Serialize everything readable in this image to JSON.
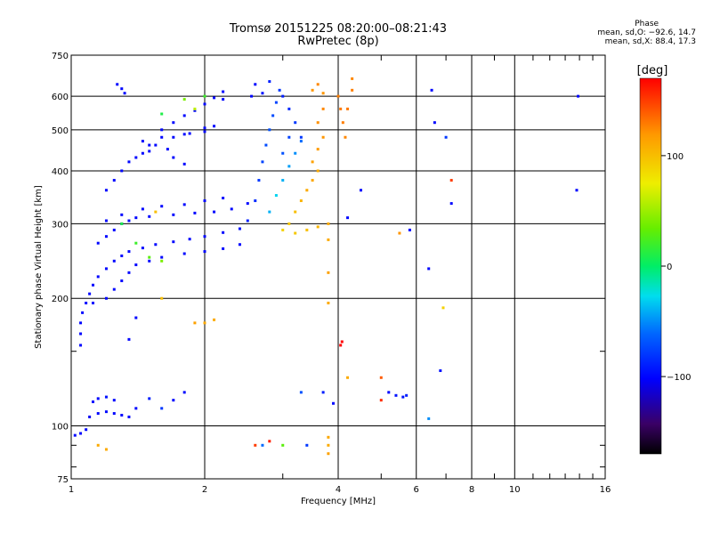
{
  "title_line1": "Tromsø 20151225 08:20:00–08:21:43",
  "title_line2": "RwPretec (8p)",
  "phase_stats": {
    "header": "Phase",
    "o_line": "mean, sd,O: −92.6, 14.7",
    "x_line": "mean, sd,X:  88.4, 17.3"
  },
  "colorbar": {
    "label": "[deg]",
    "ticks": [
      {
        "v": 100,
        "label": "100"
      },
      {
        "v": 0,
        "label": "0"
      },
      {
        "v": -100,
        "label": "−100"
      }
    ],
    "range": [
      -170,
      170
    ]
  },
  "chart_data": {
    "type": "scatter",
    "xlabel": "Frequency [MHz]",
    "ylabel": "Stationary phase Virtual Height [km]",
    "x_scale": "log",
    "y_scale": "log",
    "xlim": [
      1,
      16
    ],
    "ylim": [
      75,
      750
    ],
    "xticks": [
      1,
      2,
      4,
      6,
      8,
      10,
      16
    ],
    "x_minor_ticks": [
      3,
      5,
      7,
      9,
      11,
      12,
      13,
      14,
      15
    ],
    "yticks": [
      75,
      100,
      200,
      300,
      400,
      500,
      600,
      750
    ],
    "y_minor_ticks": [
      80,
      90,
      150
    ],
    "grid": true,
    "color_encoding": "phase in degrees",
    "series": [
      {
        "points": [
          [
            1.02,
            95,
            -100
          ],
          [
            1.05,
            96,
            -100
          ],
          [
            1.08,
            98,
            -100
          ],
          [
            1.1,
            105,
            -105
          ],
          [
            1.15,
            107,
            -100
          ],
          [
            1.2,
            108,
            -98
          ],
          [
            1.25,
            107,
            -100
          ],
          [
            1.3,
            106,
            -100
          ],
          [
            1.35,
            105,
            -100
          ],
          [
            1.12,
            114,
            -100
          ],
          [
            1.15,
            116,
            -100
          ],
          [
            1.2,
            117,
            -95
          ],
          [
            1.25,
            115,
            -100
          ],
          [
            1.05,
            155,
            -100
          ],
          [
            1.05,
            165,
            -100
          ],
          [
            1.05,
            175,
            -100
          ],
          [
            1.06,
            185,
            -100
          ],
          [
            1.08,
            195,
            -100
          ],
          [
            1.1,
            205,
            -100
          ],
          [
            1.12,
            215,
            -100
          ],
          [
            1.15,
            225,
            -100
          ],
          [
            1.2,
            235,
            -100
          ],
          [
            1.25,
            245,
            -100
          ],
          [
            1.3,
            252,
            -100
          ],
          [
            1.35,
            258,
            -100
          ],
          [
            1.45,
            263,
            -100
          ],
          [
            1.55,
            268,
            -100
          ],
          [
            1.7,
            272,
            -100
          ],
          [
            1.85,
            276,
            -100
          ],
          [
            2.0,
            280,
            -100
          ],
          [
            2.2,
            286,
            -100
          ],
          [
            2.4,
            292,
            -95
          ],
          [
            1.12,
            195,
            -100
          ],
          [
            1.2,
            200,
            -100
          ],
          [
            1.25,
            210,
            -100
          ],
          [
            1.3,
            220,
            -100
          ],
          [
            1.35,
            230,
            -100
          ],
          [
            1.4,
            240,
            -100
          ],
          [
            1.5,
            245,
            -100
          ],
          [
            1.6,
            250,
            -100
          ],
          [
            1.8,
            255,
            -100
          ],
          [
            2.0,
            258,
            -100
          ],
          [
            2.2,
            262,
            -100
          ],
          [
            2.4,
            268,
            -100
          ],
          [
            1.15,
            270,
            -100
          ],
          [
            1.2,
            280,
            -100
          ],
          [
            1.25,
            290,
            -100
          ],
          [
            1.3,
            300,
            -100
          ],
          [
            1.35,
            305,
            -100
          ],
          [
            1.4,
            310,
            -100
          ],
          [
            1.5,
            312,
            -100
          ],
          [
            1.7,
            315,
            -100
          ],
          [
            1.9,
            318,
            -100
          ],
          [
            2.1,
            320,
            -100
          ],
          [
            2.3,
            325,
            -100
          ],
          [
            2.5,
            335,
            -100
          ],
          [
            1.2,
            305,
            -100
          ],
          [
            1.3,
            315,
            -100
          ],
          [
            1.45,
            325,
            -100
          ],
          [
            1.6,
            330,
            -100
          ],
          [
            1.8,
            333,
            -100
          ],
          [
            2.0,
            340,
            -100
          ],
          [
            2.2,
            345,
            -100
          ],
          [
            1.2,
            360,
            -100
          ],
          [
            1.25,
            380,
            -100
          ],
          [
            1.3,
            400,
            -100
          ],
          [
            1.35,
            420,
            -100
          ],
          [
            1.45,
            440,
            -100
          ],
          [
            1.55,
            460,
            -100
          ],
          [
            1.7,
            480,
            -100
          ],
          [
            1.85,
            490,
            -100
          ],
          [
            2.0,
            505,
            -100
          ],
          [
            1.45,
            470,
            -100
          ],
          [
            1.6,
            480,
            -100
          ],
          [
            1.8,
            488,
            -100
          ],
          [
            2.0,
            495,
            -100
          ],
          [
            2.1,
            510,
            -100
          ],
          [
            1.4,
            430,
            -100
          ],
          [
            1.5,
            460,
            -100
          ],
          [
            1.6,
            500,
            -100
          ],
          [
            1.7,
            520,
            -100
          ],
          [
            1.8,
            540,
            -100
          ],
          [
            1.9,
            555,
            -100
          ],
          [
            2.0,
            575,
            -100
          ],
          [
            2.1,
            595,
            -100
          ],
          [
            2.2,
            615,
            -100
          ],
          [
            1.27,
            640,
            -100
          ],
          [
            1.3,
            625,
            -100
          ],
          [
            1.32,
            610,
            -100
          ],
          [
            2.5,
            305,
            -90
          ],
          [
            2.6,
            340,
            -85
          ],
          [
            2.65,
            380,
            -80
          ],
          [
            2.7,
            420,
            -75
          ],
          [
            2.75,
            460,
            -72
          ],
          [
            2.8,
            500,
            -70
          ],
          [
            2.85,
            540,
            -72
          ],
          [
            2.9,
            580,
            -75
          ],
          [
            2.95,
            620,
            -80
          ],
          [
            2.55,
            600,
            -100
          ],
          [
            2.6,
            640,
            -100
          ],
          [
            2.7,
            610,
            -95
          ],
          [
            2.8,
            650,
            -90
          ],
          [
            3.0,
            600,
            -90
          ],
          [
            3.1,
            560,
            -85
          ],
          [
            3.2,
            520,
            -80
          ],
          [
            3.3,
            480,
            -80
          ],
          [
            2.8,
            320,
            -40
          ],
          [
            2.9,
            350,
            -30
          ],
          [
            3.0,
            380,
            -40
          ],
          [
            3.1,
            410,
            -45
          ],
          [
            3.2,
            440,
            -50
          ],
          [
            3.3,
            470,
            -60
          ],
          [
            3.0,
            440,
            -70
          ],
          [
            3.1,
            480,
            -75
          ],
          [
            3.1,
            300,
            95
          ],
          [
            3.2,
            320,
            100
          ],
          [
            3.3,
            340,
            105
          ],
          [
            3.4,
            360,
            110
          ],
          [
            3.5,
            380,
            112
          ],
          [
            3.6,
            400,
            110
          ],
          [
            3.5,
            420,
            115
          ],
          [
            3.6,
            450,
            118
          ],
          [
            3.7,
            480,
            120
          ],
          [
            3.6,
            520,
            122
          ],
          [
            3.7,
            560,
            125
          ],
          [
            3.0,
            290,
            90
          ],
          [
            3.2,
            285,
            95
          ],
          [
            3.4,
            290,
            100
          ],
          [
            3.6,
            295,
            105
          ],
          [
            3.8,
            300,
            110
          ],
          [
            3.5,
            620,
            120
          ],
          [
            3.6,
            640,
            125
          ],
          [
            3.7,
            610,
            120
          ],
          [
            4.0,
            600,
            128
          ],
          [
            4.05,
            560,
            130
          ],
          [
            4.1,
            520,
            128
          ],
          [
            4.15,
            480,
            125
          ],
          [
            4.2,
            560,
            130
          ],
          [
            4.3,
            620,
            128
          ],
          [
            4.3,
            660,
            125
          ],
          [
            4.05,
            155,
            175
          ],
          [
            4.08,
            158,
            175
          ],
          [
            5.0,
            130,
            140
          ],
          [
            5.2,
            120,
            -100
          ],
          [
            5.4,
            118,
            -95
          ],
          [
            5.6,
            117,
            -95
          ],
          [
            5.7,
            118,
            -90
          ],
          [
            5.0,
            115,
            155
          ],
          [
            3.3,
            120,
            -70
          ],
          [
            3.7,
            120,
            -90
          ],
          [
            3.9,
            113,
            -100
          ],
          [
            4.2,
            130,
            110
          ],
          [
            3.8,
            195,
            110
          ],
          [
            3.8,
            230,
            115
          ],
          [
            3.8,
            275,
            110
          ],
          [
            4.2,
            310,
            -100
          ],
          [
            4.5,
            360,
            -100
          ],
          [
            5.5,
            285,
            120
          ],
          [
            5.8,
            290,
            -100
          ],
          [
            6.4,
            235,
            -100
          ],
          [
            6.6,
            520,
            -100
          ],
          [
            7.0,
            480,
            -80
          ],
          [
            7.2,
            380,
            150
          ],
          [
            7.2,
            335,
            -100
          ],
          [
            6.4,
            104,
            -50
          ],
          [
            6.8,
            135,
            -95
          ],
          [
            6.9,
            190,
            90
          ],
          [
            6.5,
            620,
            -100
          ],
          [
            13.8,
            360,
            -100
          ],
          [
            13.9,
            600,
            -100
          ],
          [
            1.6,
            110,
            -80
          ],
          [
            1.7,
            115,
            -100
          ],
          [
            1.8,
            120,
            -100
          ],
          [
            1.5,
            116,
            -90
          ],
          [
            1.4,
            110,
            -100
          ],
          [
            1.9,
            175,
            115
          ],
          [
            2.0,
            175,
            110
          ],
          [
            2.1,
            178,
            110
          ],
          [
            1.6,
            200,
            100
          ],
          [
            1.4,
            180,
            -100
          ],
          [
            1.35,
            160,
            -100
          ],
          [
            2.6,
            90,
            150
          ],
          [
            2.7,
            90,
            -60
          ],
          [
            3.0,
            90,
            30
          ],
          [
            3.4,
            90,
            -80
          ],
          [
            3.8,
            90,
            110
          ],
          [
            3.8,
            86,
            115
          ],
          [
            3.8,
            94,
            112
          ],
          [
            2.8,
            92,
            160
          ],
          [
            1.2,
            88,
            110
          ],
          [
            1.15,
            90,
            110
          ],
          [
            1.5,
            250,
            30
          ],
          [
            1.6,
            245,
            40
          ],
          [
            1.4,
            270,
            20
          ],
          [
            1.3,
            300,
            10
          ],
          [
            1.55,
            320,
            100
          ],
          [
            1.9,
            560,
            60
          ],
          [
            1.8,
            590,
            40
          ],
          [
            2.0,
            600,
            20
          ],
          [
            1.6,
            545,
            10
          ],
          [
            1.7,
            430,
            -100
          ],
          [
            1.8,
            415,
            -100
          ],
          [
            1.65,
            450,
            -100
          ],
          [
            1.5,
            445,
            -100
          ],
          [
            2.2,
            590,
            -100
          ]
        ]
      }
    ]
  }
}
